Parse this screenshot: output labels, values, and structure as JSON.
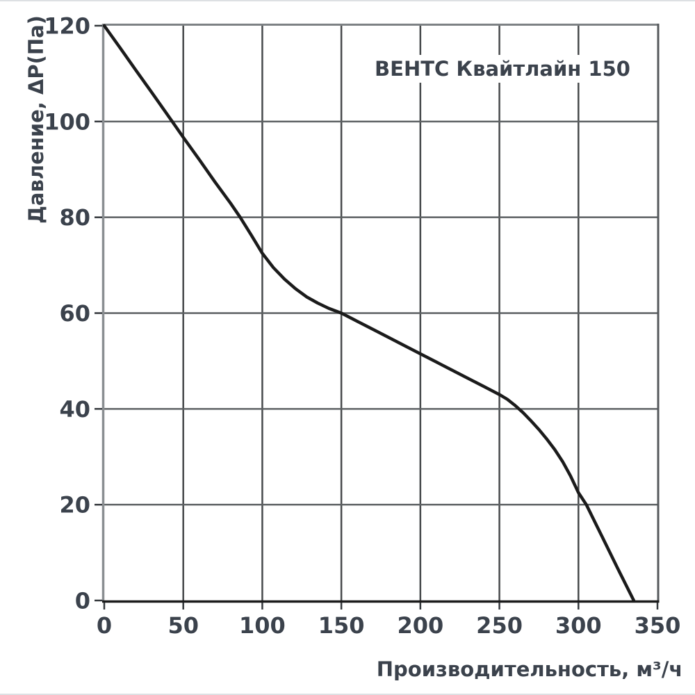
{
  "chart_data": {
    "type": "line",
    "title": "ВЕНТС Квайтлайн 150",
    "xlabel": "Производительность, м³/ч",
    "ylabel": "Давление,  ΔР(Па)",
    "xlim": [
      0,
      350
    ],
    "ylim": [
      0,
      120
    ],
    "x_ticks": [
      0,
      50,
      100,
      150,
      200,
      250,
      300,
      350
    ],
    "y_ticks": [
      0,
      20,
      40,
      60,
      80,
      100,
      120
    ],
    "grid": true,
    "legend": false,
    "series": [
      {
        "name": "ВЕНТС Квайтлайн 150",
        "points": [
          [
            0,
            120
          ],
          [
            10,
            115.4
          ],
          [
            20,
            110.7
          ],
          [
            30,
            106.1
          ],
          [
            43,
            100
          ],
          [
            50,
            96.7
          ],
          [
            60,
            92.1
          ],
          [
            70,
            87.4
          ],
          [
            80,
            82.9
          ],
          [
            86,
            80
          ],
          [
            93,
            76.3
          ],
          [
            100,
            72.5
          ],
          [
            107,
            69.5
          ],
          [
            114,
            67.1
          ],
          [
            121,
            65.1
          ],
          [
            128,
            63.4
          ],
          [
            135,
            62.1
          ],
          [
            142,
            61.0
          ],
          [
            150,
            60
          ],
          [
            160,
            58.3
          ],
          [
            170,
            56.6
          ],
          [
            180,
            54.9
          ],
          [
            190,
            53.2
          ],
          [
            200,
            51.5
          ],
          [
            210,
            49.8
          ],
          [
            220,
            48.1
          ],
          [
            230,
            46.4
          ],
          [
            240,
            44.7
          ],
          [
            250,
            43
          ],
          [
            255,
            42
          ],
          [
            260,
            40.7
          ],
          [
            265,
            39.2
          ],
          [
            270,
            37.5
          ],
          [
            275,
            35.7
          ],
          [
            280,
            33.7
          ],
          [
            285,
            31.5
          ],
          [
            290,
            29
          ],
          [
            295,
            26
          ],
          [
            300,
            22.5
          ],
          [
            305,
            20
          ],
          [
            315,
            13.3
          ],
          [
            325,
            6.6
          ],
          [
            335,
            0
          ]
        ]
      }
    ]
  },
  "colors": {
    "background": "#ffffff",
    "edge_line": "#dde0e3",
    "curve": "#1b1b1b",
    "grid_horizontal": "#5d6163",
    "grid_vertical": "#474a4c",
    "border_top": "#7d8184",
    "border_left": "#8a8e91",
    "border_right": "#55595c",
    "axis_bottom": "#1b1b1b",
    "tick_mark": "#35393d",
    "text": "#3b424c"
  }
}
